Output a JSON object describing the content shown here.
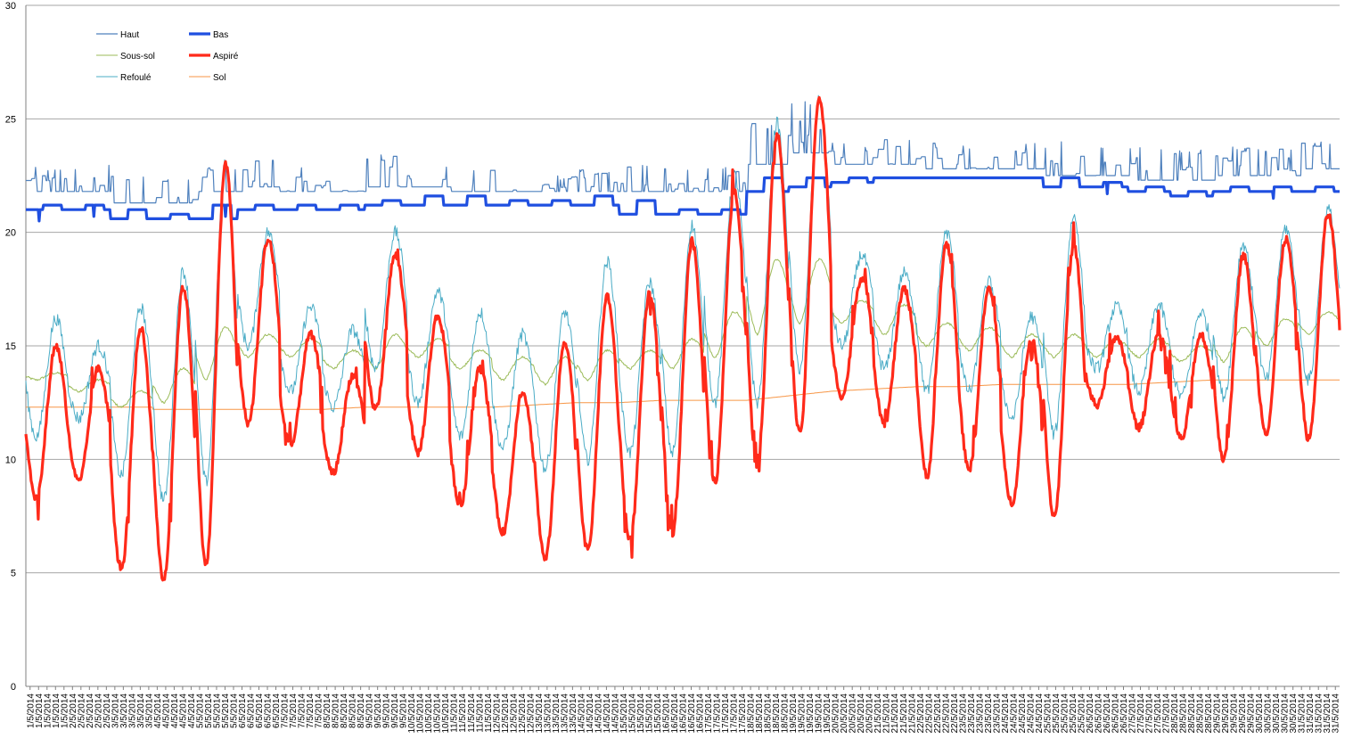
{
  "chart_data": {
    "type": "line",
    "title": "",
    "xlabel": "",
    "ylabel": "",
    "ylim": [
      0,
      30
    ],
    "yticks": [
      0,
      5,
      10,
      15,
      20,
      25,
      30
    ],
    "grid": "horizontal",
    "legend_position": "top-left",
    "x_labels_per_day": 5,
    "x": [
      "1/5/2014",
      "2/5/2014",
      "3/5/2014",
      "4/5/2014",
      "5/5/2014",
      "6/5/2014",
      "7/5/2014",
      "8/5/2014",
      "9/5/2014",
      "10/5/2014",
      "11/5/2014",
      "12/5/2014",
      "13/5/2014",
      "14/5/2014",
      "15/5/2014",
      "16/5/2014",
      "17/5/2014",
      "18/5/2014",
      "19/5/2014",
      "20/5/2014",
      "21/5/2014",
      "22/5/2014",
      "23/5/2014",
      "24/5/2014",
      "25/5/2014",
      "26/5/2014",
      "27/5/2014",
      "28/5/2014",
      "29/5/2014",
      "30/5/2014",
      "31/5/2014"
    ],
    "series": [
      {
        "name": "Haut",
        "color": "#4f81bd",
        "width": 1.2,
        "min": [
          21.8,
          21.8,
          21.3,
          21.3,
          21.8,
          22.0,
          21.8,
          21.8,
          22.0,
          22.0,
          21.8,
          21.8,
          21.8,
          21.8,
          21.8,
          21.8,
          21.8,
          23.0,
          23.5,
          23.0,
          23.0,
          22.8,
          22.8,
          22.8,
          22.5,
          22.5,
          22.3,
          22.3,
          22.5,
          22.5,
          22.8
        ],
        "max": [
          23.0,
          23.0,
          22.5,
          22.5,
          23.0,
          23.2,
          23.0,
          22.5,
          23.5,
          23.0,
          23.0,
          22.5,
          22.5,
          22.8,
          23.0,
          22.8,
          23.0,
          24.8,
          25.8,
          24.0,
          24.3,
          24.0,
          23.8,
          24.0,
          24.0,
          24.0,
          23.8,
          23.8,
          23.8,
          23.8,
          24.0
        ]
      },
      {
        "name": "Bas",
        "color": "#1f4fe0",
        "width": 3.2,
        "min": [
          21.0,
          21.0,
          20.3,
          20.3,
          20.3,
          21.0,
          21.0,
          21.0,
          21.0,
          21.0,
          21.0,
          21.0,
          21.0,
          21.0,
          20.5,
          20.5,
          20.8,
          21.5,
          21.8,
          22.0,
          22.3,
          22.3,
          22.3,
          22.3,
          21.8,
          21.8,
          21.5,
          21.5,
          21.5,
          21.8,
          21.8
        ],
        "max": [
          21.2,
          21.2,
          21.0,
          20.8,
          21.2,
          21.2,
          21.2,
          21.2,
          21.3,
          21.5,
          21.5,
          21.3,
          21.3,
          21.5,
          21.3,
          21.0,
          21.0,
          22.3,
          22.3,
          22.3,
          22.3,
          22.3,
          22.3,
          22.3,
          22.3,
          22.2,
          22.0,
          21.8,
          22.0,
          22.0,
          22.0
        ]
      },
      {
        "name": "Sous-sol",
        "color": "#9bbb59",
        "width": 1.0,
        "min": [
          13.5,
          13.0,
          12.3,
          12.5,
          13.5,
          14.5,
          14.5,
          14.0,
          14.0,
          14.5,
          14.0,
          13.5,
          13.3,
          13.5,
          14.0,
          14.0,
          14.5,
          15.5,
          16.0,
          16.0,
          15.5,
          15.0,
          14.8,
          14.5,
          14.5,
          14.5,
          14.5,
          14.3,
          14.3,
          15.0,
          15.5
        ],
        "max": [
          13.8,
          13.5,
          13.0,
          14.0,
          15.8,
          15.5,
          15.3,
          14.8,
          15.5,
          15.3,
          14.8,
          14.5,
          14.5,
          14.8,
          14.8,
          15.3,
          16.5,
          18.8,
          18.8,
          17.0,
          16.8,
          16.0,
          15.8,
          15.5,
          15.5,
          15.3,
          15.3,
          15.0,
          15.8,
          16.2,
          16.5
        ]
      },
      {
        "name": "Aspiré",
        "color": "#ff2a1a",
        "width": 3.2,
        "min": [
          8.3,
          9.0,
          5.1,
          4.7,
          5.4,
          11.6,
          10.6,
          9.4,
          12.2,
          10.3,
          8.0,
          6.8,
          5.6,
          6.0,
          6.5,
          6.7,
          9.0,
          9.6,
          11.1,
          12.8,
          11.6,
          9.3,
          9.6,
          8.1,
          7.5,
          12.4,
          11.4,
          10.9,
          10.0,
          11.2,
          10.9
        ],
        "max": [
          15.0,
          14.0,
          15.8,
          17.6,
          23.0,
          19.7,
          15.5,
          13.7,
          19.0,
          16.3,
          14.0,
          13.0,
          15.2,
          17.2,
          17.3,
          19.6,
          21.8,
          24.3,
          25.9,
          18.0,
          17.5,
          19.5,
          17.5,
          15.3,
          19.4,
          15.3,
          15.5,
          15.5,
          19.0,
          19.7,
          20.8
        ]
      },
      {
        "name": "Refoulé",
        "color": "#4bacc6",
        "width": 1.0,
        "min": [
          11.0,
          11.8,
          9.3,
          8.2,
          9.0,
          15.0,
          13.0,
          12.3,
          14.0,
          12.5,
          11.0,
          10.5,
          9.6,
          10.0,
          10.3,
          10.3,
          12.5,
          12.5,
          14.0,
          15.0,
          14.0,
          13.0,
          13.0,
          11.8,
          11.1,
          14.0,
          13.0,
          12.8,
          12.8,
          13.5,
          13.5
        ],
        "max": [
          16.2,
          15.0,
          16.7,
          18.3,
          23.0,
          20.0,
          16.7,
          15.7,
          20.0,
          17.4,
          16.5,
          15.5,
          16.5,
          18.7,
          17.8,
          20.3,
          22.5,
          24.8,
          25.8,
          19.0,
          18.2,
          20.0,
          17.8,
          16.3,
          20.7,
          16.7,
          16.8,
          16.5,
          19.5,
          20.2,
          21.0
        ]
      },
      {
        "name": "Sol",
        "color": "#f79646",
        "width": 1.0,
        "min": [
          12.3,
          12.3,
          12.3,
          12.2,
          12.2,
          12.2,
          12.2,
          12.2,
          12.3,
          12.3,
          12.3,
          12.3,
          12.4,
          12.5,
          12.5,
          12.6,
          12.6,
          12.6,
          12.8,
          13.0,
          13.1,
          13.2,
          13.2,
          13.3,
          13.3,
          13.3,
          13.3,
          13.4,
          13.5,
          13.5,
          13.5
        ],
        "max": [
          12.3,
          12.3,
          12.3,
          12.2,
          12.2,
          12.2,
          12.2,
          12.3,
          12.3,
          12.3,
          12.3,
          12.4,
          12.5,
          12.5,
          12.6,
          12.6,
          12.6,
          12.8,
          13.0,
          13.1,
          13.2,
          13.2,
          13.3,
          13.3,
          13.3,
          13.3,
          13.4,
          13.5,
          13.5,
          13.5,
          13.5
        ]
      }
    ]
  }
}
